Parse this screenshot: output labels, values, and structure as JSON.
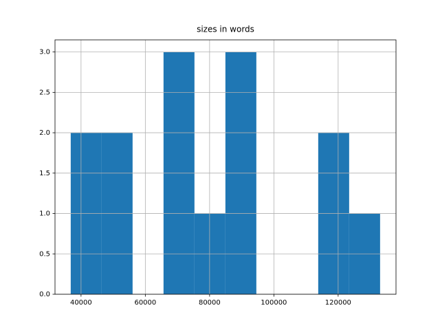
{
  "chart_data": {
    "type": "histogram",
    "title": "sizes in words",
    "bins": [
      36790,
      46416,
      56042,
      65668,
      75294,
      84920,
      94546,
      104172,
      113798,
      123424,
      133050
    ],
    "values": [
      2,
      2,
      0,
      3,
      1,
      3,
      0,
      0,
      2,
      1
    ],
    "color": "#1f77b4",
    "xlim": [
      31900,
      138000
    ],
    "xticks": [
      40000,
      60000,
      80000,
      100000,
      120000
    ],
    "ylim": [
      0,
      3.15
    ],
    "yticks": [
      {
        "value": 0,
        "label": "0.0"
      },
      {
        "value": 0.5,
        "label": "0.5"
      },
      {
        "value": 1,
        "label": "1.0"
      },
      {
        "value": 1.5,
        "label": "1.5"
      },
      {
        "value": 2,
        "label": "2.0"
      },
      {
        "value": 2.5,
        "label": "2.5"
      },
      {
        "value": 3,
        "label": "3.0"
      }
    ],
    "grid": true
  }
}
